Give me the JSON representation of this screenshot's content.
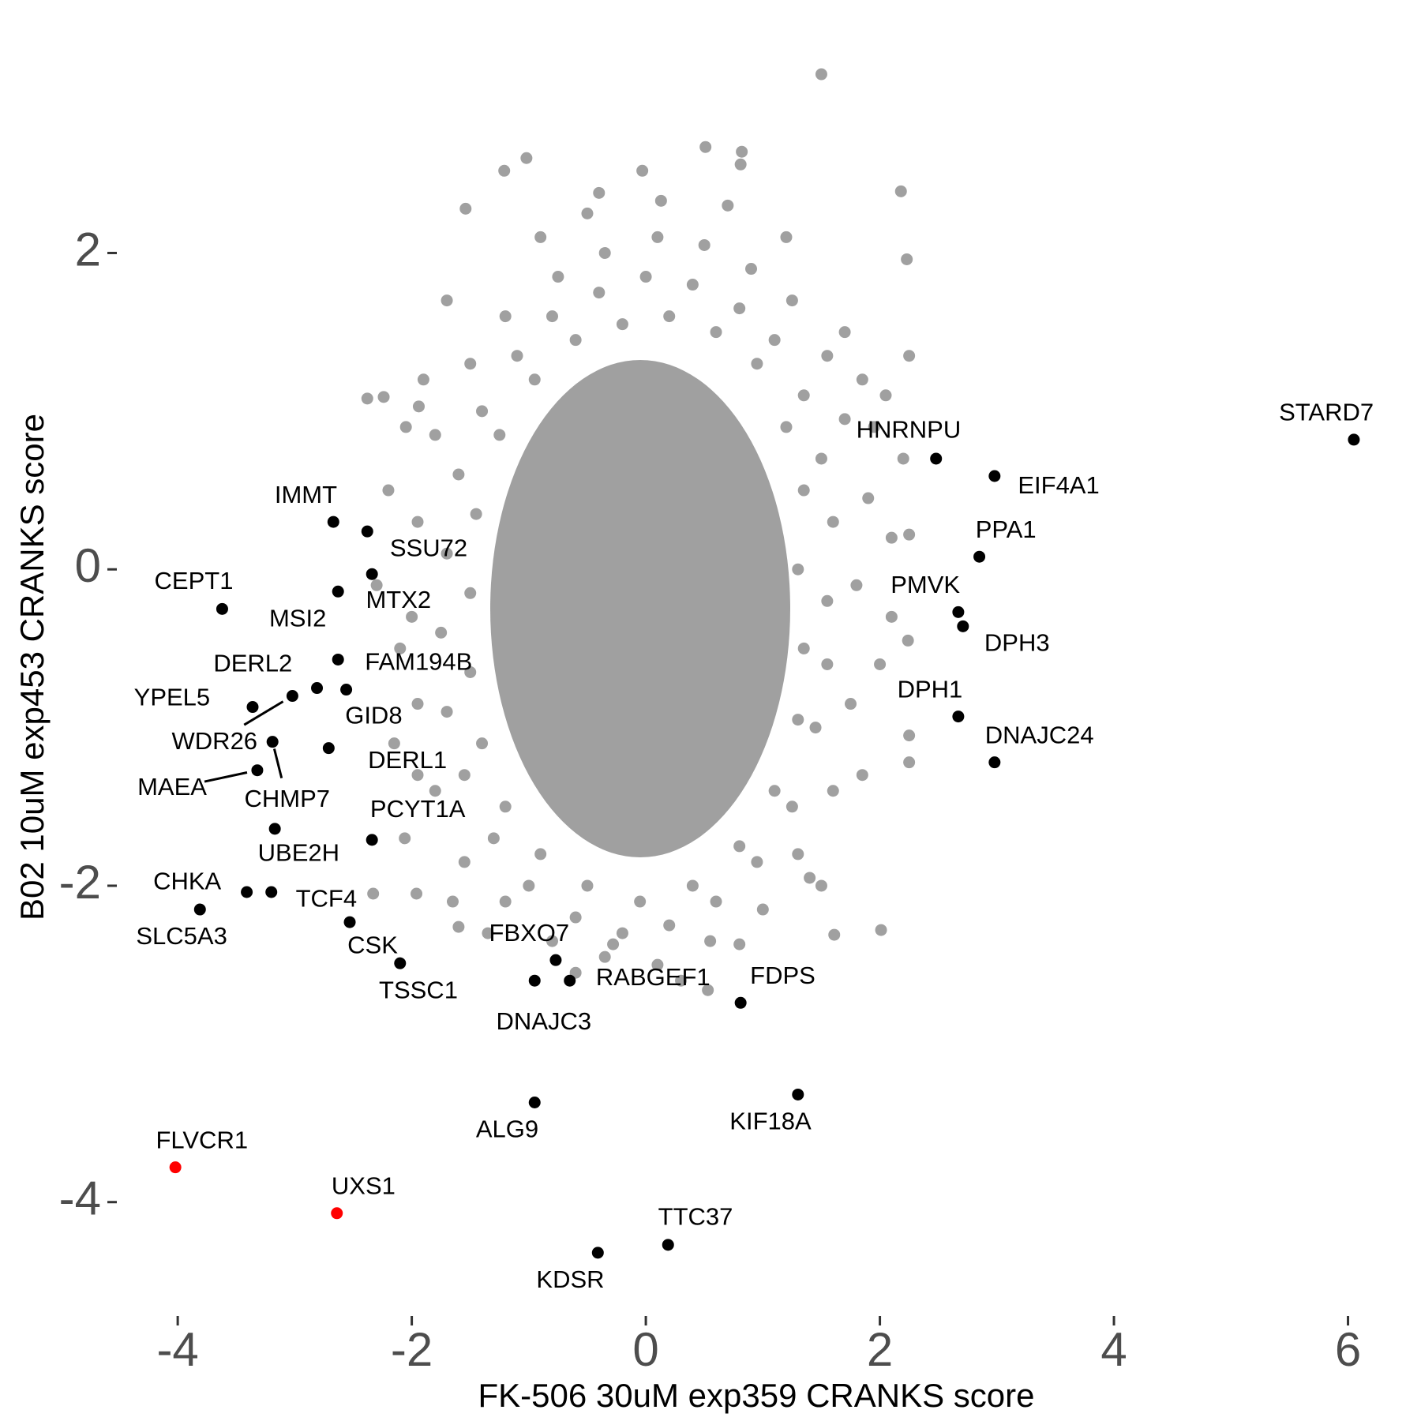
{
  "chart_data": {
    "type": "scatter",
    "xlabel": "FK-506 30uM exp359 CRANKS score",
    "ylabel": "B02 10uM exp453 CRANKS score",
    "xlim": [
      -4.5,
      6.3
    ],
    "ylim": [
      -4.7,
      3.25
    ],
    "xticks": [
      -4,
      -2,
      0,
      2,
      4,
      6
    ],
    "yticks": [
      -4,
      -2,
      0,
      2
    ],
    "grid": false,
    "series": [
      {
        "color": "#a0a0a0",
        "x": [
          1.5,
          0.51,
          0.82,
          0.81,
          -1.02,
          -1.21,
          -0.03,
          2.18,
          2.23,
          -1.54,
          -0.4,
          0.13,
          -2.38,
          -2.24,
          -1.94,
          1.61,
          2.01,
          -1.6,
          0.53,
          0.8,
          -0.28,
          2.25,
          2.25,
          2.24,
          2.25,
          2.25,
          -2.06,
          -1.96,
          -2.33,
          -1.95,
          1.55,
          1.6,
          1.5,
          1.35,
          1.1,
          0.8,
          0.4,
          0.0,
          -0.4,
          -0.8,
          -1.1,
          -1.4,
          -1.6,
          -1.7,
          -1.75,
          -1.7,
          -1.55,
          -1.3,
          -1.0,
          -0.6,
          -0.2,
          0.2,
          0.6,
          0.95,
          1.25,
          1.45,
          1.55,
          1.8,
          1.9,
          1.7,
          1.55,
          1.25,
          0.9,
          0.5,
          0.1,
          -0.35,
          -0.75,
          -1.2,
          -1.5,
          -1.8,
          -1.95,
          -2.0,
          -1.95,
          -1.8,
          -1.55,
          -1.2,
          -0.8,
          -0.35,
          0.1,
          0.55,
          1.0,
          1.3,
          1.6,
          1.75,
          1.3,
          1.35,
          1.2,
          0.95,
          0.6,
          0.2,
          -0.2,
          -0.6,
          -0.95,
          -1.25,
          -1.45,
          -1.5,
          -1.5,
          -1.4,
          -1.2,
          -0.9,
          -0.5,
          -0.05,
          0.4,
          0.8,
          1.1,
          1.3,
          1.35,
          2.1,
          2.0,
          1.95,
          1.85,
          1.7,
          2.1,
          -2.2,
          -2.1,
          -2.15,
          -1.9,
          -1.7,
          -1.65,
          1.2,
          0.7,
          -0.5,
          -0.9,
          1.5,
          1.85,
          -2.3,
          2.2,
          0.3,
          -0.6,
          1.4,
          -1.35,
          2.05,
          -2.05
        ],
        "values": [
          3.13,
          2.67,
          2.64,
          2.56,
          2.6,
          2.52,
          2.52,
          2.39,
          1.96,
          2.28,
          2.38,
          2.33,
          1.08,
          1.09,
          1.03,
          -2.31,
          -2.28,
          -2.26,
          -2.66,
          -2.37,
          -2.37,
          -1.05,
          -1.22,
          -0.45,
          0.22,
          1.35,
          -1.7,
          -2.05,
          -2.05,
          -1.3,
          -0.2,
          0.3,
          0.7,
          1.1,
          1.45,
          1.65,
          1.8,
          1.85,
          1.75,
          1.6,
          1.35,
          1.0,
          0.6,
          0.1,
          -0.4,
          -0.9,
          -1.3,
          -1.7,
          -2.0,
          -2.2,
          -2.3,
          -2.25,
          -2.1,
          -1.85,
          -1.5,
          -1.0,
          -0.6,
          -0.1,
          0.45,
          0.95,
          1.35,
          1.7,
          1.9,
          2.05,
          2.1,
          2.0,
          1.85,
          1.6,
          1.3,
          0.85,
          0.3,
          -0.3,
          -0.85,
          -1.4,
          -1.85,
          -2.1,
          -2.35,
          -2.45,
          -2.5,
          -2.35,
          -2.15,
          -1.8,
          -1.4,
          -0.85,
          0.0,
          0.5,
          0.9,
          1.3,
          1.5,
          1.6,
          1.55,
          1.45,
          1.2,
          0.85,
          0.35,
          -0.15,
          -0.65,
          -1.1,
          -1.5,
          -1.8,
          -2.0,
          -2.1,
          -2.0,
          -1.75,
          -1.4,
          -0.95,
          -0.5,
          0.2,
          -0.6,
          0.9,
          -1.3,
          1.5,
          -0.3,
          0.5,
          -0.5,
          -1.1,
          1.2,
          1.7,
          -2.1,
          2.1,
          2.3,
          2.25,
          2.1,
          -2.0,
          1.2,
          -0.1,
          0.7,
          -2.6,
          -2.55,
          -1.95,
          -2.3,
          1.1,
          0.9
        ]
      },
      {
        "color": "#000000",
        "labels": [
          "STARD7",
          "HNRNPU",
          "EIF4A1",
          "PPA1",
          "PMVK",
          "DPH3",
          "DPH1",
          "DNAJC24",
          "IMMT",
          "SSU72",
          "MTX2",
          "MSI2",
          "CEPT1",
          "FAM194B",
          "DERL2",
          "GID8",
          "YPEL5",
          "WDR26",
          "CHMP7",
          "MAEA",
          "DERL1",
          "UBE2H",
          "PCYT1A",
          "CHKA",
          "TCF4",
          "SLC5A3",
          "CSK",
          "TSSC1",
          "FBXO7",
          "DNAJC3",
          "RABGEF1",
          "FDPS",
          "ALG9",
          "KIF18A",
          "TTC37",
          "KDSR"
        ],
        "x": [
          6.05,
          2.48,
          2.98,
          2.85,
          2.67,
          2.71,
          2.67,
          2.98,
          -2.67,
          -2.38,
          -2.34,
          -2.63,
          -3.62,
          -2.63,
          -2.81,
          -2.56,
          -3.36,
          -3.02,
          -3.19,
          -3.32,
          -2.71,
          -3.17,
          -2.34,
          -3.41,
          -3.2,
          -3.81,
          -2.53,
          -2.1,
          -0.77,
          -0.95,
          -0.65,
          0.81,
          -0.95,
          1.3,
          0.19,
          -0.41
        ],
        "values": [
          0.82,
          0.7,
          0.59,
          0.08,
          -0.27,
          -0.36,
          -0.93,
          -1.22,
          0.3,
          0.24,
          -0.03,
          -0.14,
          -0.25,
          -0.57,
          -0.75,
          -0.76,
          -0.87,
          -0.8,
          -1.09,
          -1.27,
          -1.13,
          -1.64,
          -1.71,
          -2.04,
          -2.04,
          -2.15,
          -2.23,
          -2.49,
          -2.47,
          -2.6,
          -2.6,
          -2.74,
          -3.37,
          -3.32,
          -4.27,
          -4.32
        ]
      },
      {
        "color": "#ff0000",
        "labels": [
          "FLVCR1",
          "UXS1"
        ],
        "x": [
          -4.02,
          -2.64
        ],
        "values": [
          -3.78,
          -4.07
        ]
      }
    ]
  }
}
